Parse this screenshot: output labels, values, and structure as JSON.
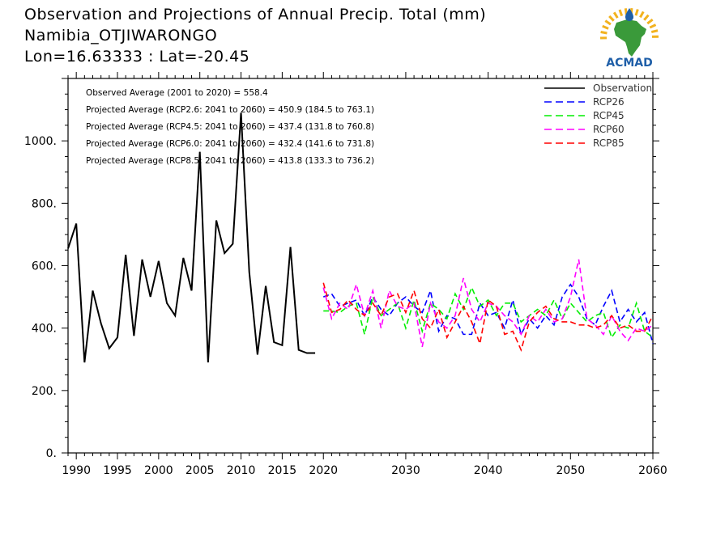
{
  "header": {
    "title": "Observation and Projections of Annual Precip. Total (mm)",
    "location": "Namibia_OTJIWARONGO",
    "coords": "Lon=16.63333 : Lat=-20.45"
  },
  "logo": {
    "text": "ACMAD",
    "colors": {
      "africa": "#3a9a3a",
      "text": "#1f5fa8",
      "sun": "#f2b21f"
    }
  },
  "chart_data": {
    "type": "line",
    "xlim": [
      1989,
      2060
    ],
    "ylim": [
      0,
      1200
    ],
    "x_ticks_labeled": [
      1990,
      1995,
      2000,
      2005,
      2010,
      2015,
      2020,
      2030,
      2040,
      2050,
      2060
    ],
    "y_ticks_labeled": [
      0,
      200,
      400,
      600,
      800,
      1000
    ],
    "y_tick_labels": [
      "0.",
      "200.",
      "400.",
      "600.",
      "800.",
      "1000."
    ],
    "annotations": [
      "Observed Average (2001 to 2020) = 558.4",
      "Projected Average (RCP2.6: 2041 to 2060) = 450.9 (184.5 to 763.1)",
      "Projected Average (RCP4.5: 2041 to 2060) = 437.4 (131.8 to 760.8)",
      "Projected Average (RCP6.0: 2041 to 2060) = 432.4 (141.6 to 731.8)",
      "Projected Average (RCP8.5: 2041 to 2060) = 413.8 (133.3 to 736.2)"
    ],
    "series": [
      {
        "name": "Observation",
        "color": "#000000",
        "dash": "solid",
        "x": [
          1989,
          1990,
          1991,
          1992,
          1993,
          1994,
          1995,
          1996,
          1997,
          1998,
          1999,
          2000,
          2001,
          2002,
          2003,
          2004,
          2005,
          2006,
          2007,
          2008,
          2009,
          2010,
          2011,
          2012,
          2013,
          2014,
          2015,
          2016,
          2017,
          2018,
          2019
        ],
        "values": [
          655,
          735,
          290,
          520,
          415,
          335,
          370,
          635,
          375,
          620,
          500,
          615,
          480,
          440,
          625,
          520,
          965,
          290,
          745,
          640,
          670,
          1090,
          580,
          315,
          535,
          355,
          345,
          660,
          330,
          320,
          320
        ]
      },
      {
        "name": "RCP26",
        "color": "#0000ff",
        "dash": "dashed",
        "x": [
          2020,
          2021,
          2022,
          2023,
          2024,
          2025,
          2026,
          2027,
          2028,
          2029,
          2030,
          2031,
          2032,
          2033,
          2034,
          2035,
          2036,
          2037,
          2038,
          2039,
          2040,
          2041,
          2042,
          2043,
          2044,
          2045,
          2046,
          2047,
          2048,
          2049,
          2050,
          2051,
          2052,
          2053,
          2054,
          2055,
          2056,
          2057,
          2058,
          2059,
          2060
        ],
        "values": [
          500,
          510,
          470,
          480,
          490,
          440,
          500,
          460,
          440,
          480,
          500,
          470,
          450,
          520,
          390,
          440,
          430,
          380,
          380,
          480,
          440,
          450,
          400,
          490,
          380,
          430,
          400,
          440,
          410,
          500,
          540,
          500,
          430,
          410,
          470,
          520,
          420,
          460,
          420,
          450,
          350
        ]
      },
      {
        "name": "RCP45",
        "color": "#00ee00",
        "dash": "dashed",
        "x": [
          2020,
          2021,
          2022,
          2023,
          2024,
          2025,
          2026,
          2027,
          2028,
          2029,
          2030,
          2031,
          2032,
          2033,
          2034,
          2035,
          2036,
          2037,
          2038,
          2039,
          2040,
          2041,
          2042,
          2043,
          2044,
          2045,
          2046,
          2047,
          2048,
          2049,
          2050,
          2051,
          2052,
          2053,
          2054,
          2055,
          2056,
          2057,
          2058,
          2059,
          2060
        ],
        "values": [
          455,
          455,
          450,
          470,
          480,
          380,
          500,
          440,
          460,
          480,
          400,
          490,
          390,
          480,
          460,
          430,
          510,
          460,
          530,
          470,
          490,
          440,
          480,
          480,
          420,
          440,
          460,
          440,
          490,
          430,
          480,
          450,
          420,
          440,
          450,
          370,
          410,
          400,
          480,
          390,
          370
        ]
      },
      {
        "name": "RCP60",
        "color": "#ff00ff",
        "dash": "dashed",
        "x": [
          2020,
          2021,
          2022,
          2023,
          2024,
          2025,
          2026,
          2027,
          2028,
          2029,
          2030,
          2031,
          2032,
          2033,
          2034,
          2035,
          2036,
          2037,
          2038,
          2039,
          2040,
          2041,
          2042,
          2043,
          2044,
          2045,
          2046,
          2047,
          2048,
          2049,
          2050,
          2051,
          2052,
          2053,
          2054,
          2055,
          2056,
          2057,
          2058,
          2059,
          2060
        ],
        "values": [
          530,
          430,
          480,
          460,
          540,
          440,
          520,
          400,
          520,
          470,
          460,
          480,
          340,
          480,
          420,
          400,
          440,
          560,
          460,
          420,
          480,
          470,
          440,
          420,
          380,
          440,
          420,
          460,
          420,
          430,
          500,
          620,
          430,
          410,
          380,
          440,
          390,
          360,
          400,
          390,
          410
        ]
      },
      {
        "name": "RCP85",
        "color": "#ff0000",
        "dash": "dashed",
        "x": [
          2020,
          2021,
          2022,
          2023,
          2024,
          2025,
          2026,
          2027,
          2028,
          2029,
          2030,
          2031,
          2032,
          2033,
          2034,
          2035,
          2036,
          2037,
          2038,
          2039,
          2040,
          2041,
          2042,
          2043,
          2044,
          2045,
          2046,
          2047,
          2048,
          2049,
          2050,
          2051,
          2052,
          2053,
          2054,
          2055,
          2056,
          2057,
          2058,
          2059,
          2060
        ],
        "values": [
          545,
          450,
          460,
          490,
          460,
          440,
          480,
          440,
          500,
          510,
          450,
          520,
          430,
          400,
          460,
          370,
          420,
          470,
          420,
          350,
          490,
          470,
          380,
          390,
          330,
          420,
          450,
          470,
          430,
          420,
          420,
          410,
          410,
          400,
          410,
          440,
          400,
          410,
          390,
          390,
          440
        ]
      }
    ]
  }
}
